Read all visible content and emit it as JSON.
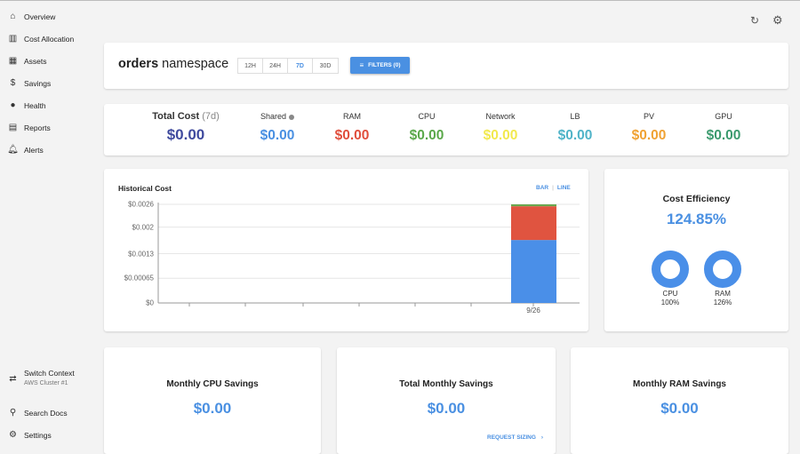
{
  "sidebar": {
    "items": [
      {
        "label": "Overview",
        "icon": "home-icon"
      },
      {
        "label": "Cost Allocation",
        "icon": "bar-chart-icon"
      },
      {
        "label": "Assets",
        "icon": "assets-icon"
      },
      {
        "label": "Savings",
        "icon": "dollar-icon"
      },
      {
        "label": "Health",
        "icon": "alert-circle-icon"
      },
      {
        "label": "Reports",
        "icon": "clipboard-icon"
      },
      {
        "label": "Alerts",
        "icon": "bell-icon"
      }
    ],
    "bottom": {
      "switch_context": "Switch Context",
      "context_name": "AWS Cluster #1",
      "search_docs": "Search Docs",
      "settings": "Settings"
    }
  },
  "header": {
    "title_bold": "orders",
    "title_rest": " namespace",
    "ranges": [
      "12H",
      "24H",
      "7D",
      "30D"
    ],
    "selected_range": "7D",
    "filters": "FILTERS (0)"
  },
  "summary": {
    "total_label": "Total Cost",
    "total_period": " (7d)",
    "total_value": "$0.00",
    "items": [
      {
        "label": "Shared",
        "value": "$0.00",
        "color": "#4a90e2"
      },
      {
        "label": "RAM",
        "value": "$0.00",
        "color": "#e04e3c"
      },
      {
        "label": "CPU",
        "value": "$0.00",
        "color": "#5aa84a"
      },
      {
        "label": "Network",
        "value": "$0.00",
        "color": "#f2e94e"
      },
      {
        "label": "LB",
        "value": "$0.00",
        "color": "#4fb3c8"
      },
      {
        "label": "PV",
        "value": "$0.00",
        "color": "#f0a233"
      },
      {
        "label": "GPU",
        "value": "$0.00",
        "color": "#3b9a6e"
      }
    ],
    "total_color": "#3f4a9e"
  },
  "chart_data": {
    "type": "bar",
    "title": "Historical Cost",
    "toggle": [
      "BAR",
      "LINE"
    ],
    "selected": "BAR",
    "categories": [
      "",
      "",
      "",
      "",
      "",
      "",
      "9/26"
    ],
    "series": [
      {
        "color": "#4a8fe8",
        "values": [
          0,
          0,
          0,
          0,
          0,
          0,
          0.00166
        ]
      },
      {
        "color": "#e05440",
        "values": [
          0,
          0,
          0,
          0,
          0,
          0,
          0.00089
        ]
      },
      {
        "color": "#6aa84f",
        "values": [
          0,
          0,
          0,
          0,
          0,
          0,
          5e-05
        ]
      }
    ],
    "yticks": [
      "$0",
      "$0.00065",
      "$0.0013",
      "$0.002",
      "$0.0026"
    ],
    "ylim": [
      0,
      0.0026
    ],
    "grid": true
  },
  "efficiency": {
    "title": "Cost Efficiency",
    "value": "124.85%",
    "cpu_label": "CPU",
    "cpu_value": "100%",
    "ram_label": "RAM",
    "ram_value": "126%",
    "cpu": 100,
    "ram": 126
  },
  "savings": {
    "cpu_title": "Monthly CPU Savings",
    "cpu_value": "$0.00",
    "total_title": "Total Monthly Savings",
    "total_value": "$0.00",
    "request_sizing": "REQUEST SIZING",
    "ram_title": "Monthly RAM Savings",
    "ram_value": "$0.00"
  }
}
